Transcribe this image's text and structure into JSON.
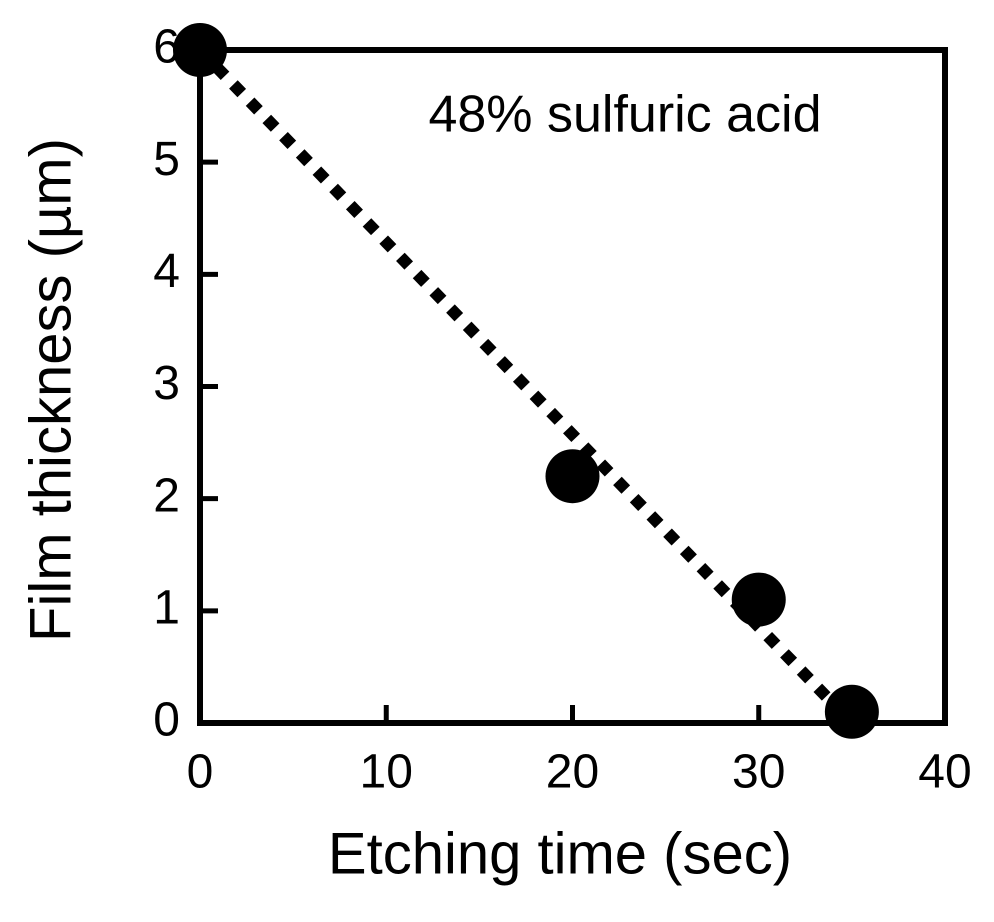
{
  "chart_data": {
    "type": "scatter",
    "xlabel": "Etching time (sec)",
    "ylabel": "Film thickness (µm)",
    "annotation": "48% sulfuric acid",
    "x": [
      0,
      20,
      30,
      35
    ],
    "values": [
      6,
      2.2,
      1.1,
      0.1
    ],
    "color": "#000000",
    "fit_line": {
      "x": [
        0,
        35
      ],
      "values": [
        6,
        0
      ],
      "style": "dotted",
      "color": "#000000"
    },
    "xlim": [
      0,
      40
    ],
    "xticks": [
      0,
      10,
      20,
      30,
      40
    ],
    "ylim": [
      0,
      6
    ],
    "yticks": [
      0,
      1,
      2,
      3,
      4,
      5,
      6
    ]
  }
}
